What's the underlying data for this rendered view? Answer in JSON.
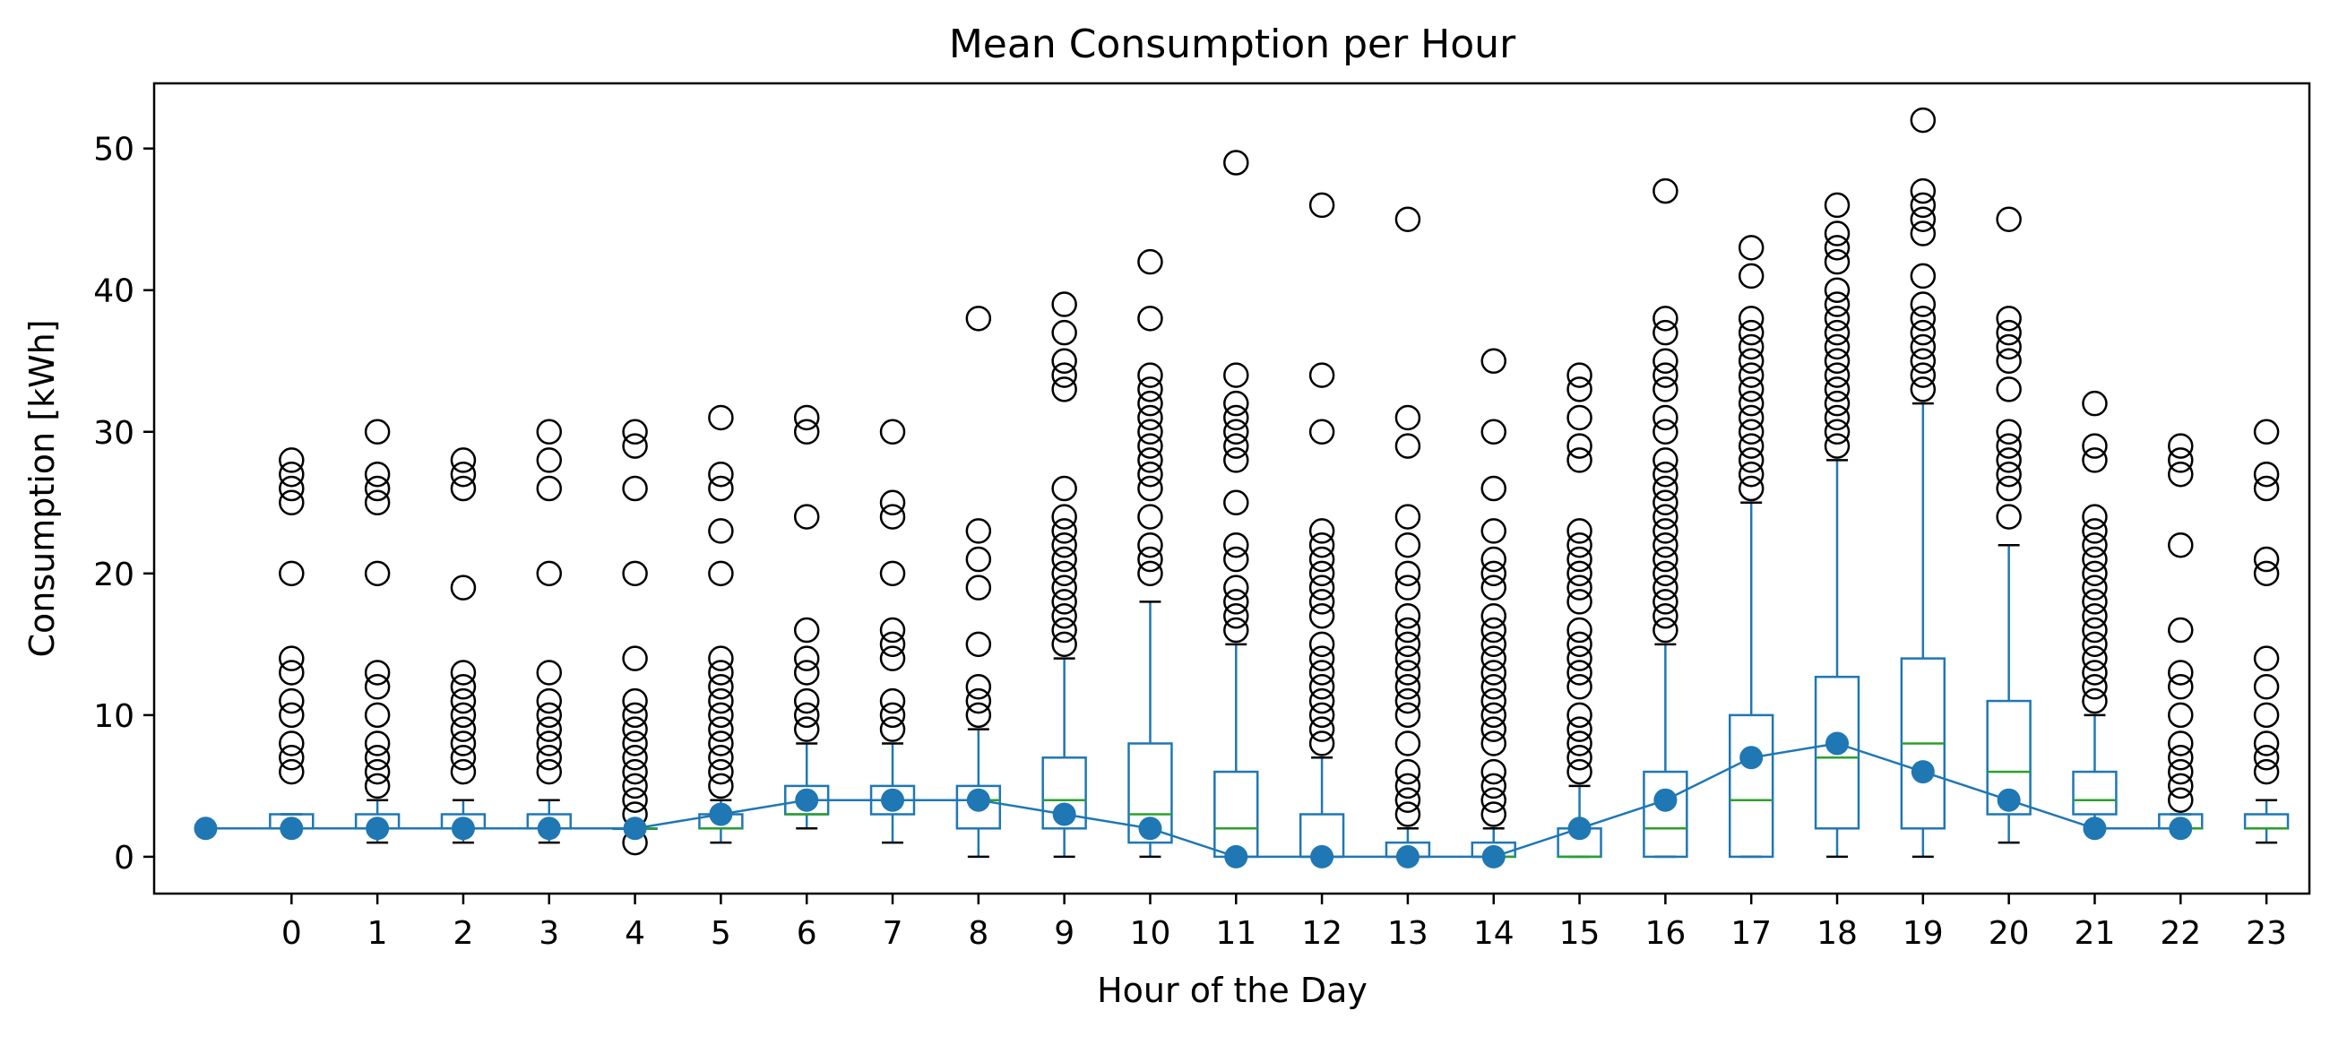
{
  "chart_data": {
    "type": "box",
    "title": "Mean Consumption per Hour",
    "xlabel": "Hour of the Day",
    "ylabel": "Consumption [kWh]",
    "ylim": [
      -2.6,
      54.6
    ],
    "xlim": [
      -1.6,
      23.5
    ],
    "yticks": [
      0,
      10,
      20,
      30,
      40,
      50
    ],
    "grid": false,
    "legend": "none",
    "colors": {
      "box": "#1f77b4",
      "median": "#2ca02c",
      "whisker_cap": "#000000",
      "flier": "#000000",
      "mean_line": "#1f77b4"
    },
    "categories": [
      "0",
      "1",
      "2",
      "3",
      "4",
      "5",
      "6",
      "7",
      "8",
      "9",
      "10",
      "11",
      "12",
      "13",
      "14",
      "15",
      "16",
      "17",
      "18",
      "19",
      "20",
      "21",
      "22",
      "23"
    ],
    "boxes": [
      {
        "hour": 0,
        "q1": 2,
        "median": 2,
        "q3": 3,
        "whisker_low": 2,
        "whisker_high": 3,
        "fliers": [
          6,
          7,
          8,
          10,
          11,
          13,
          14,
          20,
          25,
          26,
          27,
          28
        ]
      },
      {
        "hour": 1,
        "q1": 2,
        "median": 2,
        "q3": 3,
        "whisker_low": 1,
        "whisker_high": 4,
        "fliers": [
          5,
          6,
          7,
          8,
          10,
          12,
          13,
          20,
          25,
          26,
          27,
          30
        ]
      },
      {
        "hour": 2,
        "q1": 2,
        "median": 2,
        "q3": 3,
        "whisker_low": 1,
        "whisker_high": 4,
        "fliers": [
          6,
          7,
          8,
          9,
          10,
          11,
          12,
          13,
          19,
          26,
          27,
          28
        ]
      },
      {
        "hour": 3,
        "q1": 2,
        "median": 2,
        "q3": 3,
        "whisker_low": 1,
        "whisker_high": 4,
        "fliers": [
          6,
          7,
          8,
          9,
          10,
          11,
          13,
          20,
          26,
          28,
          30
        ]
      },
      {
        "hour": 4,
        "q1": 2,
        "median": 2,
        "q3": 2,
        "whisker_low": 2,
        "whisker_high": 2,
        "fliers": [
          1,
          3,
          4,
          5,
          6,
          7,
          8,
          9,
          10,
          11,
          14,
          20,
          26,
          29,
          30
        ]
      },
      {
        "hour": 5,
        "q1": 2,
        "median": 2,
        "q3": 3,
        "whisker_low": 1,
        "whisker_high": 4,
        "fliers": [
          5,
          6,
          7,
          8,
          9,
          10,
          11,
          12,
          13,
          14,
          20,
          23,
          26,
          27,
          31
        ]
      },
      {
        "hour": 6,
        "q1": 3,
        "median": 3,
        "q3": 5,
        "whisker_low": 2,
        "whisker_high": 8,
        "fliers": [
          9,
          10,
          11,
          13,
          14,
          16,
          24,
          30,
          31
        ]
      },
      {
        "hour": 7,
        "q1": 3,
        "median": 4,
        "q3": 5,
        "whisker_low": 1,
        "whisker_high": 8,
        "fliers": [
          9,
          10,
          11,
          14,
          15,
          16,
          20,
          24,
          25,
          30
        ]
      },
      {
        "hour": 8,
        "q1": 2,
        "median": 4,
        "q3": 5,
        "whisker_low": 0,
        "whisker_high": 9,
        "fliers": [
          10,
          11,
          12,
          15,
          19,
          21,
          23,
          38
        ]
      },
      {
        "hour": 9,
        "q1": 2,
        "median": 4,
        "q3": 7,
        "whisker_low": 0,
        "whisker_high": 14,
        "fliers": [
          15,
          16,
          17,
          18,
          19,
          20,
          21,
          22,
          23,
          24,
          26,
          33,
          34,
          35,
          37,
          39
        ]
      },
      {
        "hour": 10,
        "q1": 1,
        "median": 3,
        "q3": 8,
        "whisker_low": 0,
        "whisker_high": 18,
        "fliers": [
          20,
          21,
          22,
          24,
          26,
          27,
          28,
          29,
          30,
          31,
          32,
          33,
          34,
          38,
          42
        ]
      },
      {
        "hour": 11,
        "q1": 0,
        "median": 2,
        "q3": 6,
        "whisker_low": 0,
        "whisker_high": 15,
        "fliers": [
          16,
          17,
          18,
          19,
          21,
          22,
          25,
          28,
          29,
          30,
          31,
          32,
          34,
          49
        ]
      },
      {
        "hour": 12,
        "q1": 0,
        "median": 0,
        "q3": 3,
        "whisker_low": 0,
        "whisker_high": 7,
        "fliers": [
          8,
          9,
          10,
          11,
          12,
          13,
          14,
          15,
          17,
          18,
          19,
          20,
          21,
          22,
          23,
          30,
          34,
          46
        ]
      },
      {
        "hour": 13,
        "q1": 0,
        "median": 0,
        "q3": 1,
        "whisker_low": 0,
        "whisker_high": 2,
        "fliers": [
          3,
          4,
          5,
          6,
          8,
          10,
          11,
          12,
          13,
          14,
          15,
          16,
          17,
          19,
          20,
          22,
          24,
          29,
          31,
          45
        ]
      },
      {
        "hour": 14,
        "q1": 0,
        "median": 0,
        "q3": 1,
        "whisker_low": 0,
        "whisker_high": 2,
        "fliers": [
          3,
          4,
          5,
          6,
          8,
          9,
          10,
          11,
          12,
          13,
          14,
          15,
          16,
          17,
          19,
          20,
          21,
          23,
          26,
          30,
          35
        ]
      },
      {
        "hour": 15,
        "q1": 0,
        "median": 0,
        "q3": 2,
        "whisker_low": 0,
        "whisker_high": 5,
        "fliers": [
          6,
          7,
          8,
          9,
          10,
          12,
          13,
          14,
          15,
          16,
          18,
          19,
          20,
          21,
          22,
          23,
          28,
          29,
          31,
          33,
          34
        ]
      },
      {
        "hour": 16,
        "q1": 0,
        "median": 2,
        "q3": 6,
        "whisker_low": 0,
        "whisker_high": 15,
        "fliers": [
          16,
          17,
          18,
          19,
          20,
          21,
          22,
          23,
          24,
          25,
          26,
          27,
          28,
          30,
          31,
          33,
          34,
          35,
          37,
          38,
          47
        ]
      },
      {
        "hour": 17,
        "q1": 0,
        "median": 4,
        "q3": 10,
        "whisker_low": 0,
        "whisker_high": 25,
        "fliers": [
          26,
          27,
          28,
          29,
          30,
          31,
          32,
          33,
          34,
          35,
          36,
          37,
          38,
          41,
          43
        ]
      },
      {
        "hour": 18,
        "q1": 2,
        "median": 7,
        "q3": 12.7,
        "whisker_low": 0,
        "whisker_high": 28,
        "fliers": [
          29,
          30,
          31,
          32,
          33,
          34,
          35,
          36,
          37,
          38,
          39,
          40,
          42,
          43,
          44,
          46
        ]
      },
      {
        "hour": 19,
        "q1": 2,
        "median": 8,
        "q3": 14,
        "whisker_low": 0,
        "whisker_high": 32,
        "fliers": [
          33,
          34,
          35,
          36,
          37,
          38,
          39,
          41,
          44,
          45,
          46,
          47,
          52
        ]
      },
      {
        "hour": 20,
        "q1": 3,
        "median": 6,
        "q3": 11,
        "whisker_low": 1,
        "whisker_high": 22,
        "fliers": [
          24,
          26,
          27,
          28,
          29,
          30,
          33,
          35,
          36,
          37,
          38,
          45
        ]
      },
      {
        "hour": 21,
        "q1": 3,
        "median": 4,
        "q3": 6,
        "whisker_low": 2,
        "whisker_high": 10,
        "fliers": [
          11,
          12,
          13,
          14,
          15,
          16,
          17,
          18,
          19,
          20,
          21,
          22,
          23,
          24,
          28,
          29,
          32
        ]
      },
      {
        "hour": 22,
        "q1": 2,
        "median": 2,
        "q3": 3,
        "whisker_low": 2,
        "whisker_high": 3,
        "fliers": [
          4,
          5,
          6,
          7,
          8,
          10,
          12,
          13,
          16,
          22,
          27,
          28,
          29
        ]
      },
      {
        "hour": 23,
        "q1": 2,
        "median": 2,
        "q3": 3,
        "whisker_low": 1,
        "whisker_high": 4,
        "fliers": [
          6,
          7,
          8,
          10,
          12,
          14,
          20,
          21,
          26,
          27,
          30
        ]
      }
    ],
    "mean_line": {
      "x": [
        -1,
        0,
        1,
        2,
        3,
        4,
        5,
        6,
        7,
        8,
        9,
        10,
        11,
        12,
        13,
        14,
        15,
        16,
        17,
        18,
        19,
        20,
        21,
        22
      ],
      "y": [
        2,
        2,
        2,
        2,
        2,
        2,
        3,
        4,
        4,
        4,
        3,
        2,
        0,
        0,
        0,
        0,
        2,
        4,
        7,
        8,
        6,
        4,
        2,
        2
      ]
    }
  }
}
